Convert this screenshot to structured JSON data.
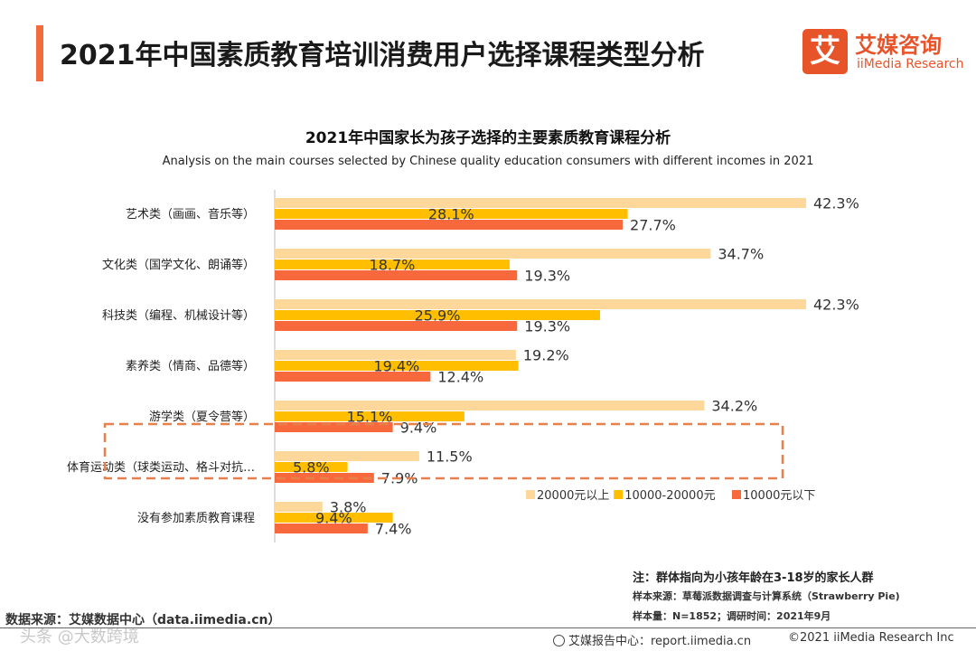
{
  "header": {
    "title": "2021年中国素质教育培训消费用户选择课程类型分析",
    "accent_color": "#f26b3a"
  },
  "logo": {
    "glyph": "艾",
    "cn": "艾媒咨询",
    "en": "iiMedia Research",
    "color": "#e8542a"
  },
  "chart_data": {
    "type": "bar",
    "orientation": "horizontal",
    "title": "2021年中国家长为孩子选择的主要素质教育课程分析",
    "subtitle": "Analysis on the main courses selected by Chinese quality education consumers with different incomes in 2021",
    "categories": [
      "艺术类（画画、音乐等）",
      "文化类（国学文化、朗诵等）",
      "科技类（编程、机械设计等）",
      "素养类（情商、品德等）",
      "游学类（夏令营等）",
      "体育运动类（球类运动、格斗对抗…",
      "没有参加素质教育课程"
    ],
    "series": [
      {
        "name": "20000元以上",
        "color": "#fdd89a",
        "values": [
          42.3,
          34.7,
          42.3,
          19.2,
          34.2,
          11.5,
          3.8
        ]
      },
      {
        "name": "10000-20000元",
        "color": "#ffbf00",
        "values": [
          28.1,
          18.7,
          25.9,
          19.4,
          15.1,
          5.8,
          9.4
        ]
      },
      {
        "name": "10000元以下",
        "color": "#f7693c",
        "values": [
          27.7,
          19.3,
          19.3,
          12.4,
          9.4,
          7.9,
          7.4
        ]
      }
    ],
    "value_suffix": "%",
    "xlim": [
      0,
      45
    ],
    "legend_position": "bottom-right",
    "highlight": {
      "category_index": 5,
      "color": "#e8804a",
      "style": "dashed"
    }
  },
  "notes": {
    "note": "注：群体指向为小孩年龄在3-18岁的家长人群",
    "sample_source": "样本来源：草莓派数据调查与计算系统（Strawberry Pie)",
    "sample_size": "样本量：N=1852；调研时间：2021年9月"
  },
  "footer": {
    "data_source": "数据来源：艾媒数据中心（data.iimedia.cn）",
    "watermark": "头条 @大数跨境",
    "report_center": "艾媒报告中心：report.iimedia.cn",
    "copyright": "©2021  iiMedia Research  Inc"
  }
}
